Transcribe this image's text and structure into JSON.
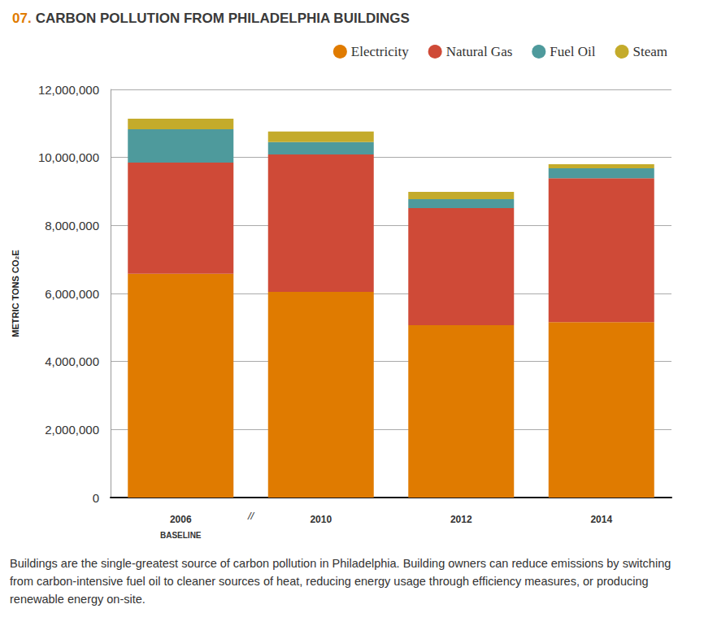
{
  "chart_data": {
    "type": "bar",
    "title": "07. CARBON POLLUTION FROM PHILADELPHIA BUILDINGS",
    "y_label": "METRIC TONS CO₂E",
    "categories": [
      "2006",
      "2010",
      "2012",
      "2014"
    ],
    "annotations": [
      {
        "text": "BASELINE",
        "category": "2006"
      },
      {
        "text": "//",
        "category_between": [
          "2006",
          "2010"
        ]
      }
    ],
    "caption": "Buildings are the single-greatest source of carbon pollution in Philadelphia. Building owners can reduce emissions by switching from carbon-intensive fuel oil to cleaner sources of heat, reducing energy usage through efficiency measures, or producing renewable energy on-site.",
    "series": [
      {
        "name": "Electricity",
        "color": "#e07b00",
        "values": [
          6580000,
          6050000,
          5070000,
          5160000
        ]
      },
      {
        "name": "Natural Gas",
        "color": "#cf4a37",
        "values": [
          3270000,
          4040000,
          3440000,
          4230000
        ]
      },
      {
        "name": "Fuel Oil",
        "color": "#4e9a9c",
        "values": [
          980000,
          360000,
          260000,
          290000
        ]
      },
      {
        "name": "Steam",
        "color": "#c4ab2b",
        "values": [
          310000,
          310000,
          220000,
          120000
        ]
      }
    ],
    "ylim": [
      0,
      12000000
    ],
    "yticks": [
      0,
      {
        "value": 2000000,
        "label": "2,000,000"
      },
      {
        "value": 4000000,
        "label": "4,000,000"
      },
      {
        "value": 6000000,
        "label": "6,000,000"
      },
      {
        "value": 8000000,
        "label": "8,000,000"
      },
      {
        "value": 10000000,
        "label": "10,000,000"
      },
      {
        "value": 12000000,
        "label": "12,000,000"
      }
    ],
    "grid": true,
    "stacked": true,
    "legend": "upper right"
  }
}
